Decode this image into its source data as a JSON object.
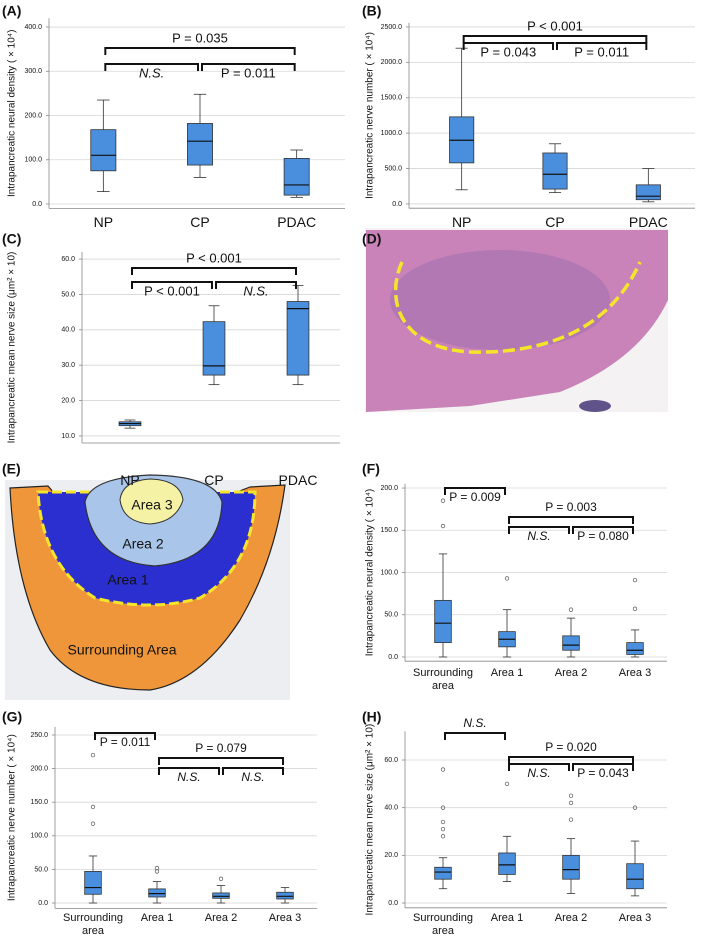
{
  "chart_data": [
    {
      "type": "box",
      "panel_label": "(A)",
      "y_label": "Intrapancreatic neural density ( × 10⁴)",
      "color": "#4a8fde",
      "categories": [
        "NP",
        "CP",
        "PDAC"
      ],
      "boxes": [
        {
          "whisker_low": 28,
          "q1": 75,
          "median": 110,
          "q3": 168,
          "whisker_high": 235,
          "outliers": []
        },
        {
          "whisker_low": 60,
          "q1": 88,
          "median": 142,
          "q3": 182,
          "whisker_high": 248,
          "outliers": []
        },
        {
          "whisker_low": 15,
          "q1": 20,
          "median": 43,
          "q3": 103,
          "whisker_high": 122,
          "outliers": []
        }
      ],
      "annotations": [
        {
          "between": [
            "NP",
            "CP"
          ],
          "text": "N.S."
        },
        {
          "between": [
            "CP",
            "PDAC"
          ],
          "text": "P = 0.011"
        },
        {
          "between": [
            "NP",
            "PDAC"
          ],
          "text": "P = 0.035"
        }
      ],
      "ylim": [
        -10,
        420
      ],
      "yticks": [
        {
          "value": 0,
          "label": "0.0"
        },
        {
          "value": 100,
          "label": "100.0"
        },
        {
          "value": 200,
          "label": "200.0"
        },
        {
          "value": 300,
          "label": "300.0"
        },
        {
          "value": 400,
          "label": "400.0"
        }
      ],
      "grid": true
    },
    {
      "type": "box",
      "panel_label": "(B)",
      "y_label": "Intrapancreatic nerve number ( × 10⁴)",
      "color": "#4a8fde",
      "categories": [
        "NP",
        "CP",
        "PDAC"
      ],
      "boxes": [
        {
          "whisker_low": 200,
          "q1": 580,
          "median": 900,
          "q3": 1230,
          "whisker_high": 2200,
          "outliers": []
        },
        {
          "whisker_low": 160,
          "q1": 210,
          "median": 420,
          "q3": 720,
          "whisker_high": 850,
          "outliers": []
        },
        {
          "whisker_low": 30,
          "q1": 60,
          "median": 110,
          "q3": 270,
          "whisker_high": 500,
          "outliers": []
        }
      ],
      "annotations": [
        {
          "between": [
            "NP",
            "CP"
          ],
          "text": "P = 0.043"
        },
        {
          "between": [
            "CP",
            "PDAC"
          ],
          "text": "P = 0.011"
        },
        {
          "between": [
            "NP",
            "PDAC"
          ],
          "text": "P < 0.001"
        }
      ],
      "ylim": [
        -60,
        2560
      ],
      "yticks": [
        {
          "value": 0,
          "label": "0.0"
        },
        {
          "value": 500,
          "label": "500.0"
        },
        {
          "value": 1000,
          "label": "1000.0"
        },
        {
          "value": 1500,
          "label": "1500.0"
        },
        {
          "value": 2000,
          "label": "2000.0"
        },
        {
          "value": 2500,
          "label": "2500.0"
        }
      ],
      "grid": true
    },
    {
      "type": "box",
      "panel_label": "(C)",
      "y_label": "Intrapancreatic mean nerve size (μm² × 10)",
      "color": "#4a8fde",
      "categories": [
        "NP",
        "CP",
        "PDAC"
      ],
      "boxes": [
        {
          "whisker_low": 12.2,
          "q1": 12.9,
          "median": 13.5,
          "q3": 14,
          "whisker_high": 14.5,
          "outliers": []
        },
        {
          "whisker_low": 24.5,
          "q1": 27.2,
          "median": 29.8,
          "q3": 42.3,
          "whisker_high": 46.8,
          "outliers": []
        },
        {
          "whisker_low": 24.5,
          "q1": 27.2,
          "median": 46,
          "q3": 48,
          "whisker_high": 52.5,
          "outliers": []
        }
      ],
      "annotations": [
        {
          "between": [
            "NP",
            "CP"
          ],
          "text": "P < 0.001"
        },
        {
          "between": [
            "CP",
            "PDAC"
          ],
          "text": "N.S."
        },
        {
          "between": [
            "NP",
            "PDAC"
          ],
          "text": "P < 0.001"
        }
      ],
      "ylim": [
        8,
        62
      ],
      "yticks": [
        {
          "value": 10,
          "label": "10.0"
        },
        {
          "value": 20,
          "label": "20.0"
        },
        {
          "value": 30,
          "label": "30.0"
        },
        {
          "value": 40,
          "label": "40.0"
        },
        {
          "value": 50,
          "label": "50.0"
        },
        {
          "value": 60,
          "label": "60.0"
        }
      ],
      "grid": true
    },
    {
      "type": "box",
      "panel_label": "(F)",
      "y_label": "Intrapancreatic neural density ( × 10⁴)",
      "color": "#4a8fde",
      "categories": [
        "Surrounding area",
        "Area 1",
        "Area 2",
        "Area 3"
      ],
      "boxes": [
        {
          "whisker_low": 0,
          "q1": 17,
          "median": 40,
          "q3": 67,
          "whisker_high": 122,
          "outliers": [
            155,
            185
          ]
        },
        {
          "whisker_low": 0,
          "q1": 12,
          "median": 21,
          "q3": 30,
          "whisker_high": 56,
          "outliers": [
            93
          ]
        },
        {
          "whisker_low": 0,
          "q1": 8,
          "median": 14,
          "q3": 25,
          "whisker_high": 46,
          "outliers": [
            56
          ]
        },
        {
          "whisker_low": 0,
          "q1": 3,
          "median": 8,
          "q3": 17,
          "whisker_high": 32,
          "outliers": [
            57,
            91
          ]
        }
      ],
      "annotations": [
        {
          "between": [
            "Surrounding area",
            "Area 1"
          ],
          "text": "P = 0.009"
        },
        {
          "between": [
            "Area 1",
            "Area 3"
          ],
          "text": "P = 0.003"
        },
        {
          "between": [
            "Area 1",
            "Area 2"
          ],
          "text": "N.S."
        },
        {
          "between": [
            "Area 2",
            "Area 3"
          ],
          "text": "P = 0.080"
        }
      ],
      "ylim": [
        -5,
        205
      ],
      "yticks": [
        {
          "value": 0,
          "label": "0.0"
        },
        {
          "value": 50,
          "label": "50.0"
        },
        {
          "value": 100,
          "label": "100.0"
        },
        {
          "value": 150,
          "label": "150.0"
        },
        {
          "value": 200,
          "label": "200.0"
        }
      ],
      "grid": true
    },
    {
      "type": "box",
      "panel_label": "(G)",
      "y_label": "Intrapancreatic nerve number ( × 10⁴)",
      "color": "#4a8fde",
      "categories": [
        "Surrounding area",
        "Area 1",
        "Area 2",
        "Area 3"
      ],
      "boxes": [
        {
          "whisker_low": 0,
          "q1": 13,
          "median": 23,
          "q3": 47,
          "whisker_high": 70,
          "outliers": [
            118,
            143,
            220
          ]
        },
        {
          "whisker_low": 0,
          "q1": 9,
          "median": 14,
          "q3": 21,
          "whisker_high": 32,
          "outliers": [
            47,
            52
          ]
        },
        {
          "whisker_low": 0,
          "q1": 7,
          "median": 10,
          "q3": 15,
          "whisker_high": 26,
          "outliers": [
            36
          ]
        },
        {
          "whisker_low": 0,
          "q1": 6,
          "median": 10,
          "q3": 16,
          "whisker_high": 23,
          "outliers": []
        }
      ],
      "annotations": [
        {
          "between": [
            "Surrounding area",
            "Area 1"
          ],
          "text": "P = 0.011"
        },
        {
          "between": [
            "Area 1",
            "Area 3"
          ],
          "text": "P = 0.079"
        },
        {
          "between": [
            "Area 1",
            "Area 2"
          ],
          "text": "N.S."
        },
        {
          "between": [
            "Area 2",
            "Area 3"
          ],
          "text": "N.S."
        }
      ],
      "ylim": [
        -8,
        262
      ],
      "yticks": [
        {
          "value": 0,
          "label": "0.0"
        },
        {
          "value": 50,
          "label": "50.0"
        },
        {
          "value": 100,
          "label": "100.0"
        },
        {
          "value": 150,
          "label": "150.0"
        },
        {
          "value": 200,
          "label": "200.0"
        },
        {
          "value": 250,
          "label": "250.0"
        }
      ],
      "grid": true
    },
    {
      "type": "box",
      "panel_label": "(H)",
      "y_label": "Intrapancreatic mean nerve size (μm² × 10)",
      "color": "#4a8fde",
      "categories": [
        "Surrounding area",
        "Area 1",
        "Area 2",
        "Area 3"
      ],
      "boxes": [
        {
          "whisker_low": 6,
          "q1": 10,
          "median": 13,
          "q3": 15,
          "whisker_high": 19,
          "outliers": [
            28,
            31,
            34,
            40,
            56
          ]
        },
        {
          "whisker_low": 9,
          "q1": 12,
          "median": 16,
          "q3": 21,
          "whisker_high": 28,
          "outliers": [
            50
          ]
        },
        {
          "whisker_low": 4,
          "q1": 10,
          "median": 14,
          "q3": 20,
          "whisker_high": 27,
          "outliers": [
            35,
            42,
            45
          ]
        },
        {
          "whisker_low": 3,
          "q1": 6,
          "median": 10,
          "q3": 16.5,
          "whisker_high": 26,
          "outliers": [
            40
          ]
        }
      ],
      "annotations": [
        {
          "between": [
            "Surrounding area",
            "Area 1"
          ],
          "text": "N.S."
        },
        {
          "between": [
            "Area 1",
            "Area 3"
          ],
          "text": "P = 0.020"
        },
        {
          "between": [
            "Area 1",
            "Area 2"
          ],
          "text": "N.S."
        },
        {
          "between": [
            "Area 2",
            "Area 3"
          ],
          "text": "P = 0.043"
        }
      ],
      "ylim": [
        -2,
        72
      ],
      "yticks": [
        {
          "value": 0,
          "label": "0.0"
        },
        {
          "value": 20,
          "label": "20.0"
        },
        {
          "value": 40,
          "label": "40.0"
        },
        {
          "value": 60,
          "label": "60.0"
        }
      ],
      "grid": true
    }
  ],
  "images": {
    "histology": {
      "panel_label": "(D)"
    },
    "areas_map": {
      "panel_label": "(E)",
      "regions": [
        "Area 3",
        "Area 2",
        "Area 1",
        "Surrounding Area"
      ]
    }
  }
}
